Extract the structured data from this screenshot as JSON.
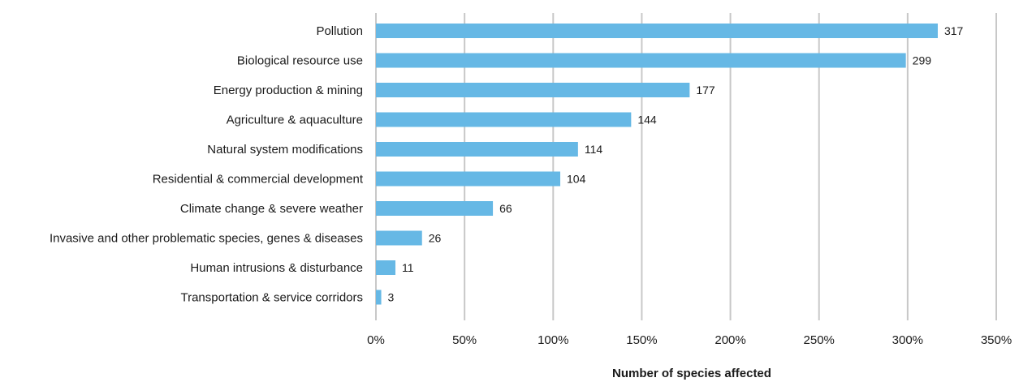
{
  "chart_data": {
    "type": "bar",
    "orientation": "horizontal",
    "categories": [
      "Pollution",
      "Biological resource use",
      "Energy production & mining",
      "Agriculture & aquaculture",
      "Natural system modifications",
      "Residential & commercial development",
      "Climate change & severe weather",
      "Invasive and other problematic species, genes & diseases",
      "Human intrusions & disturbance",
      "Transportation & service corridors"
    ],
    "values": [
      317,
      299,
      177,
      144,
      114,
      104,
      66,
      26,
      11,
      3
    ],
    "value_labels": [
      "317",
      "299",
      "177",
      "144",
      "114",
      "104",
      "66",
      "26",
      "11",
      "3"
    ],
    "x_ticks": [
      "0%",
      "50%",
      "100%",
      "150%",
      "200%",
      "250%",
      "300%",
      "350%"
    ],
    "xlim": [
      0,
      350
    ],
    "xlabel": "Number of species affected",
    "ylabel": "",
    "title": "",
    "grid": "vertical",
    "legend": "none",
    "colors": {
      "bar": "#66b8e5",
      "grid": "#c8c8c8"
    }
  }
}
